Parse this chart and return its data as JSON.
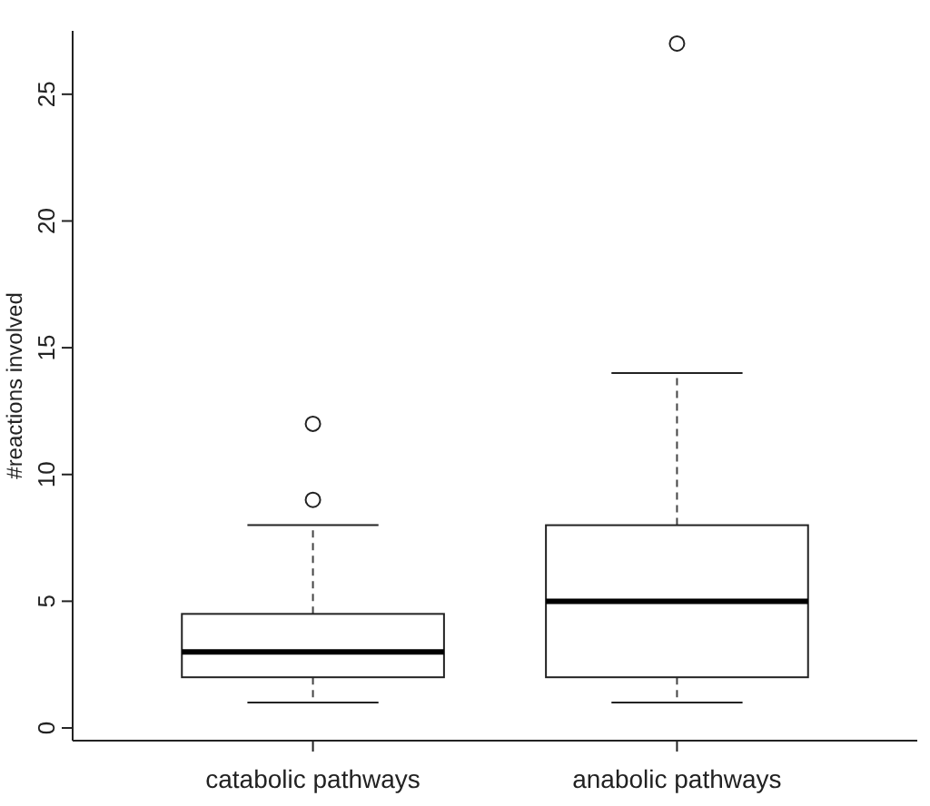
{
  "chart_data": {
    "type": "box",
    "ylabel": "#reactions involved",
    "categories": [
      "catabolic pathways",
      "anabolic pathways"
    ],
    "boxes": [
      {
        "low": 1,
        "q1": 2,
        "median": 3,
        "q3": 4.5,
        "high": 8,
        "outliers": [
          9,
          12
        ]
      },
      {
        "low": 1,
        "q1": 2,
        "median": 5,
        "q3": 8,
        "high": 14,
        "outliers": [
          27
        ]
      }
    ],
    "ylim": [
      -0.5,
      27.5
    ],
    "yticks": [
      0,
      5,
      10,
      15,
      20,
      25
    ],
    "grid": false
  }
}
